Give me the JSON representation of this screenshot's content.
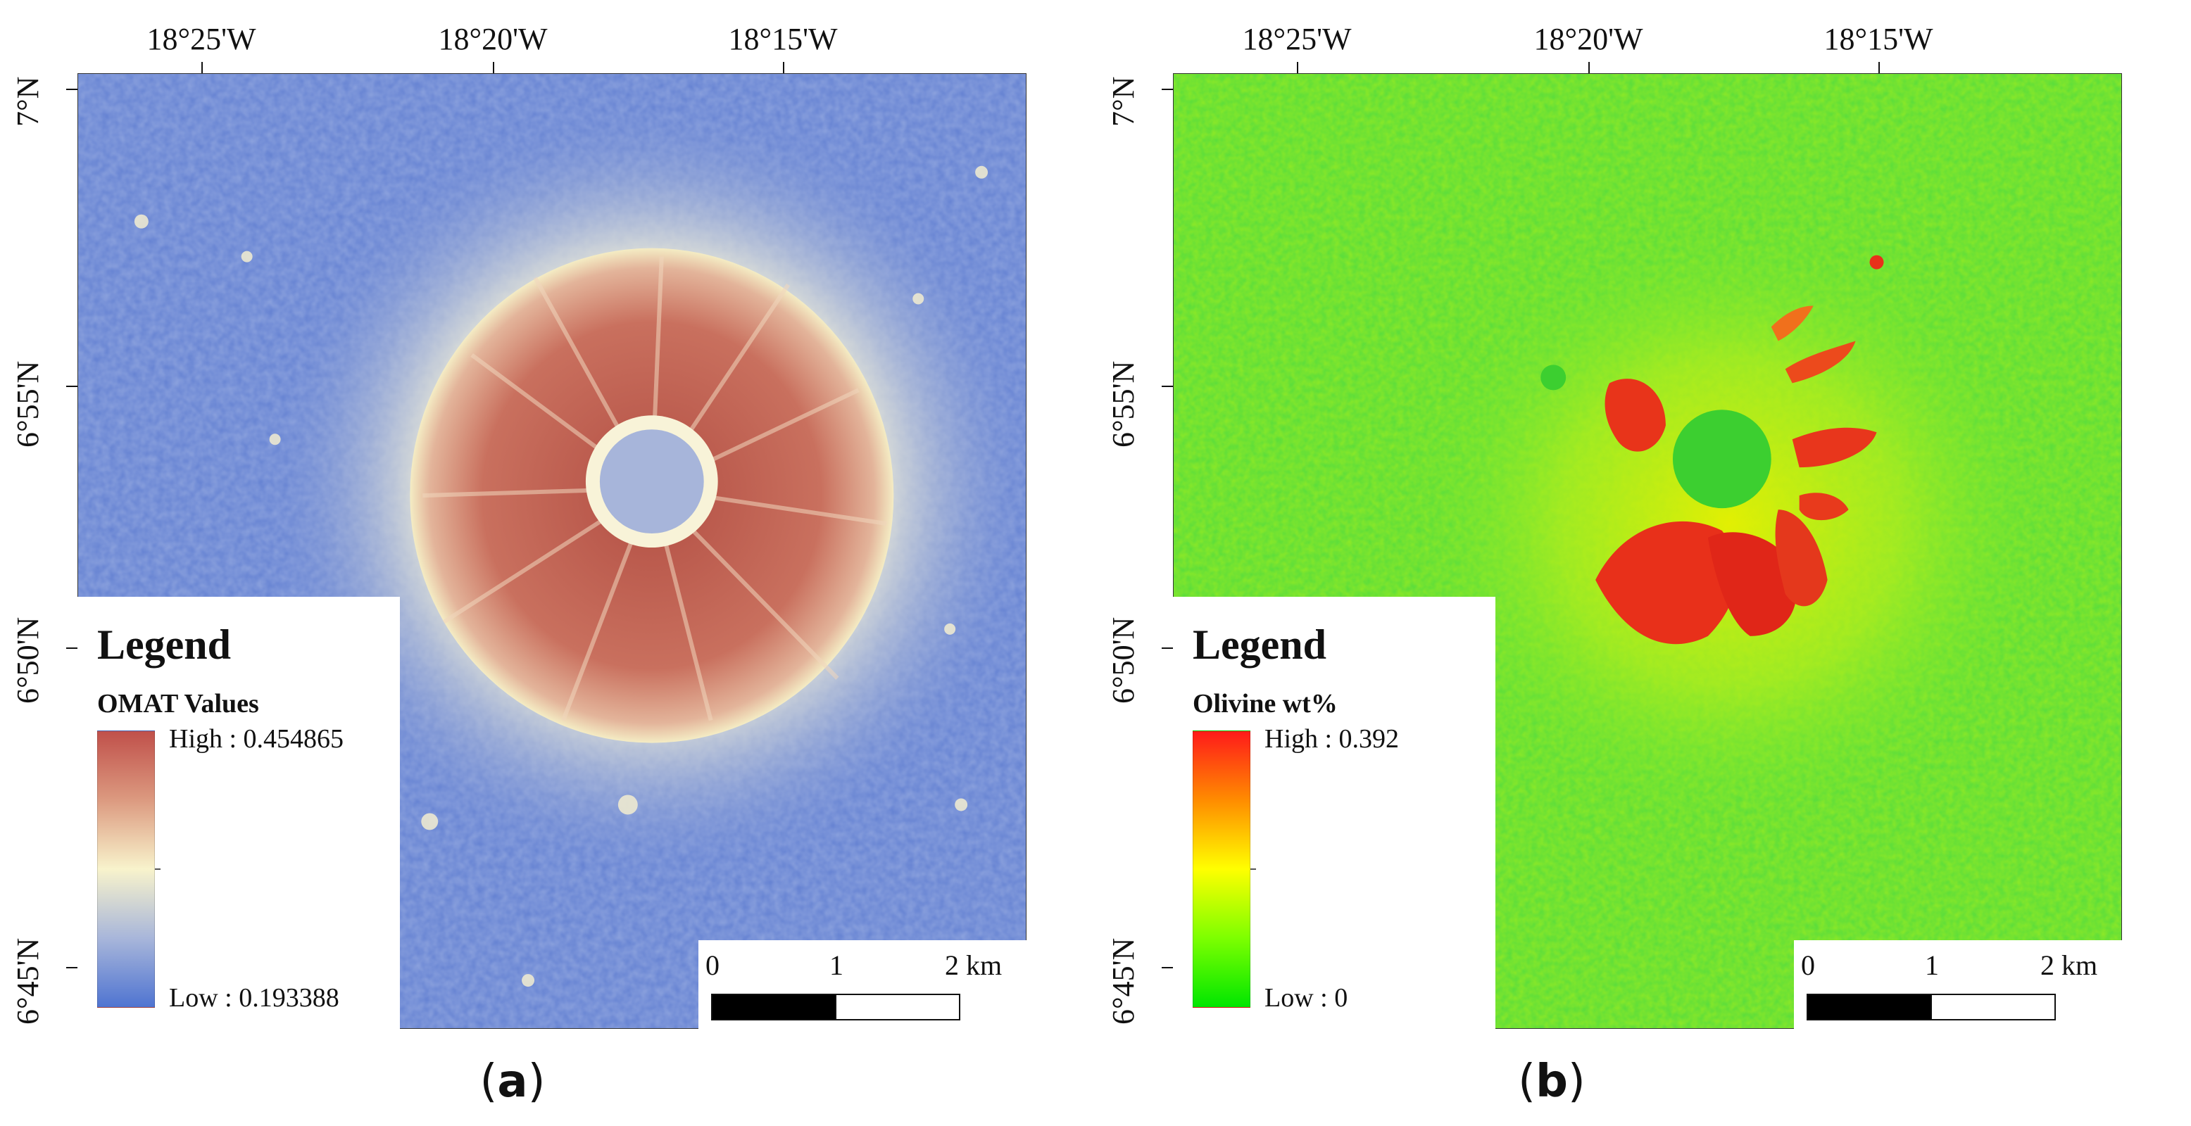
{
  "panels": [
    {
      "caption": "a",
      "lon_labels": [
        "18°25'W",
        "18°20'W",
        "18°15'W"
      ],
      "lat_labels": [
        "7°N",
        "6°55'N",
        "6°50'N",
        "6°45'N"
      ],
      "legend": {
        "title": "Legend",
        "subtitle": "OMAT Values",
        "high": "High : 0.454865",
        "low": "Low : 0.193388",
        "ramp_colors": [
          "#c0504a",
          "#dc9a80",
          "#f8f3cc",
          "#a8b6da",
          "#4f74d1"
        ]
      },
      "scalebar": {
        "labels": [
          "0",
          "1",
          "2 km"
        ]
      },
      "map": {
        "background": "#6a86d6",
        "halo": "#f2ecc0",
        "ejecta": "#c46c5c",
        "floor": "#a9b7dc"
      }
    },
    {
      "caption": "b",
      "lon_labels": [
        "18°25'W",
        "18°20'W",
        "18°15'W"
      ],
      "lat_labels": [
        "7°N",
        "6°55'N",
        "6°50'N",
        "6°45'N"
      ],
      "legend": {
        "title": "Legend",
        "subtitle": "Olivine wt%",
        "high": "High : 0.392",
        "low": "Low : 0",
        "ramp_colors": [
          "#ff1a1a",
          "#ff8c00",
          "#ffff00",
          "#7dff00",
          "#00e600"
        ]
      },
      "scalebar": {
        "labels": [
          "0",
          "1",
          "2 km"
        ]
      },
      "map": {
        "background": "#6ee634",
        "halo": "#c8f018",
        "ejecta": "#e42a1a",
        "floor": "#38d030"
      }
    }
  ]
}
